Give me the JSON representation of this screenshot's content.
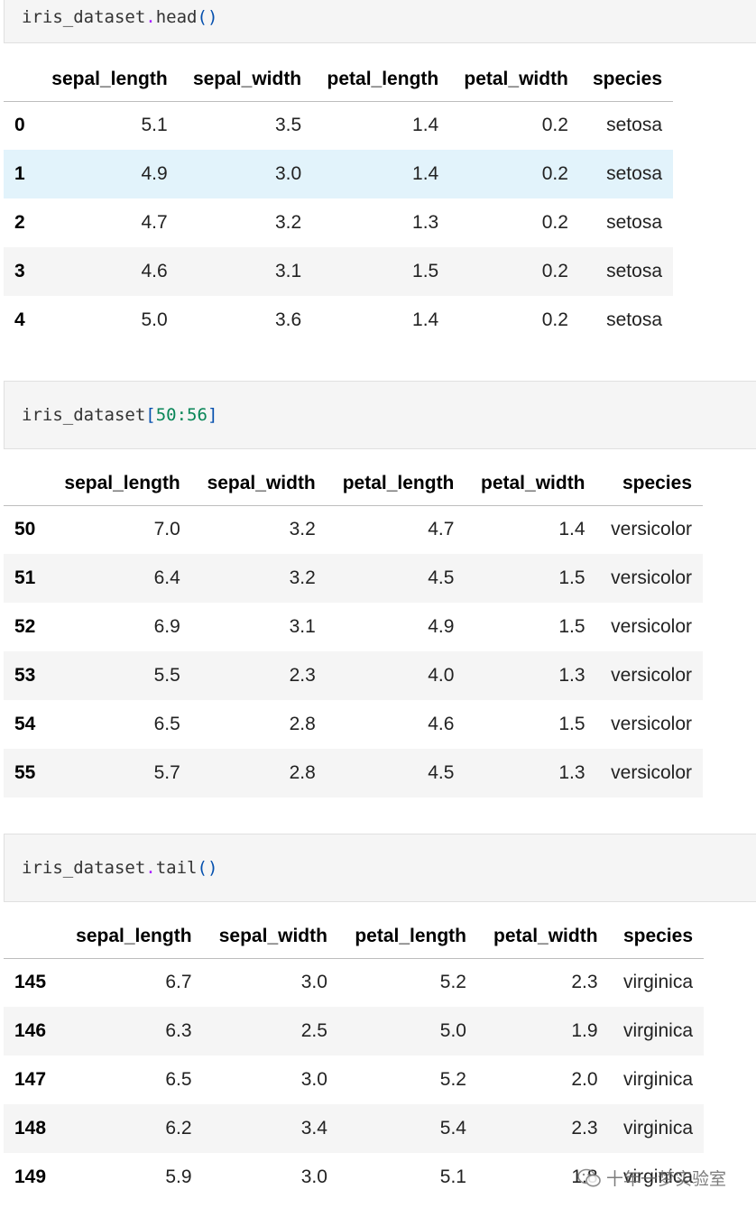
{
  "cells": [
    {
      "var": "iris_dataset",
      "sep": ".",
      "method": "head",
      "open": "(",
      "arg": "",
      "close": ")"
    },
    {
      "var": "iris_dataset",
      "sep": "",
      "method": "",
      "open": "[",
      "arg": "50:56",
      "close": "]"
    },
    {
      "var": "iris_dataset",
      "sep": ".",
      "method": "tail",
      "open": "(",
      "arg": "",
      "close": ")"
    }
  ],
  "columns": [
    "sepal_length",
    "sepal_width",
    "petal_length",
    "petal_width",
    "species"
  ],
  "tables": [
    {
      "rows": [
        {
          "index": "0",
          "values": [
            "5.1",
            "3.5",
            "1.4",
            "0.2",
            "setosa"
          ]
        },
        {
          "index": "1",
          "values": [
            "4.9",
            "3.0",
            "1.4",
            "0.2",
            "setosa"
          ]
        },
        {
          "index": "2",
          "values": [
            "4.7",
            "3.2",
            "1.3",
            "0.2",
            "setosa"
          ]
        },
        {
          "index": "3",
          "values": [
            "4.6",
            "3.1",
            "1.5",
            "0.2",
            "setosa"
          ]
        },
        {
          "index": "4",
          "values": [
            "5.0",
            "3.6",
            "1.4",
            "0.2",
            "setosa"
          ]
        }
      ]
    },
    {
      "rows": [
        {
          "index": "50",
          "values": [
            "7.0",
            "3.2",
            "4.7",
            "1.4",
            "versicolor"
          ]
        },
        {
          "index": "51",
          "values": [
            "6.4",
            "3.2",
            "4.5",
            "1.5",
            "versicolor"
          ]
        },
        {
          "index": "52",
          "values": [
            "6.9",
            "3.1",
            "4.9",
            "1.5",
            "versicolor"
          ]
        },
        {
          "index": "53",
          "values": [
            "5.5",
            "2.3",
            "4.0",
            "1.3",
            "versicolor"
          ]
        },
        {
          "index": "54",
          "values": [
            "6.5",
            "2.8",
            "4.6",
            "1.5",
            "versicolor"
          ]
        },
        {
          "index": "55",
          "values": [
            "5.7",
            "2.8",
            "4.5",
            "1.3",
            "versicolor"
          ]
        }
      ]
    },
    {
      "rows": [
        {
          "index": "145",
          "values": [
            "6.7",
            "3.0",
            "5.2",
            "2.3",
            "virginica"
          ]
        },
        {
          "index": "146",
          "values": [
            "6.3",
            "2.5",
            "5.0",
            "1.9",
            "virginica"
          ]
        },
        {
          "index": "147",
          "values": [
            "6.5",
            "3.0",
            "5.2",
            "2.0",
            "virginica"
          ]
        },
        {
          "index": "148",
          "values": [
            "6.2",
            "3.4",
            "5.4",
            "2.3",
            "virginica"
          ]
        },
        {
          "index": "149",
          "values": [
            "5.9",
            "3.0",
            "5.1",
            "1.8",
            "virginica"
          ]
        }
      ]
    }
  ],
  "watermark": {
    "text": "十年一梦实验室",
    "icon": "wechat-icon"
  },
  "colors": {
    "cell_bg": "#f5f5f5",
    "stripe": "#f5f5f5",
    "hover_row": "#e2f3fb",
    "number_literal": "#098658",
    "paren": "#0550ae"
  }
}
